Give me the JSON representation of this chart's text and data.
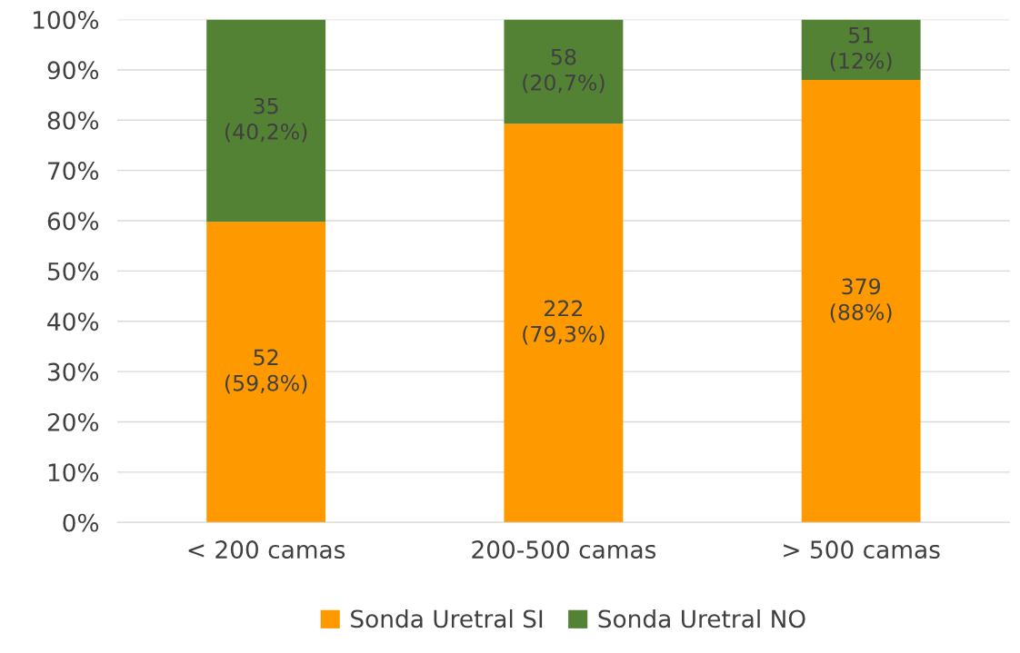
{
  "chart_data": {
    "type": "bar",
    "stacked": true,
    "categories": [
      "< 200 camas",
      "200-500 camas",
      "> 500 camas"
    ],
    "series": [
      {
        "name": "Sonda Uretral SI",
        "color": "#ff9900",
        "values": [
          59.8,
          79.3,
          88
        ],
        "value_labels": [
          "52\n(59,8%)",
          "222\n(79,3%)",
          "379\n(88%)"
        ]
      },
      {
        "name": "Sonda Uretral NO",
        "color": "#548235",
        "values": [
          40.2,
          20.7,
          12
        ],
        "value_labels": [
          "35\n(40,2%)",
          "58\n(20,7%)",
          "51\n(12%)"
        ]
      }
    ],
    "ylim": [
      0,
      100
    ],
    "yticks": [
      {
        "value": 0,
        "label": "0%"
      },
      {
        "value": 10,
        "label": "10%"
      },
      {
        "value": 20,
        "label": "20%"
      },
      {
        "value": 30,
        "label": "30%"
      },
      {
        "value": 40,
        "label": "40%"
      },
      {
        "value": 50,
        "label": "50%"
      },
      {
        "value": 60,
        "label": "60%"
      },
      {
        "value": 70,
        "label": "70%"
      },
      {
        "value": 80,
        "label": "80%"
      },
      {
        "value": 90,
        "label": "90%"
      },
      {
        "value": 100,
        "label": "100%"
      }
    ],
    "grid": "y",
    "legend": "bottom"
  }
}
